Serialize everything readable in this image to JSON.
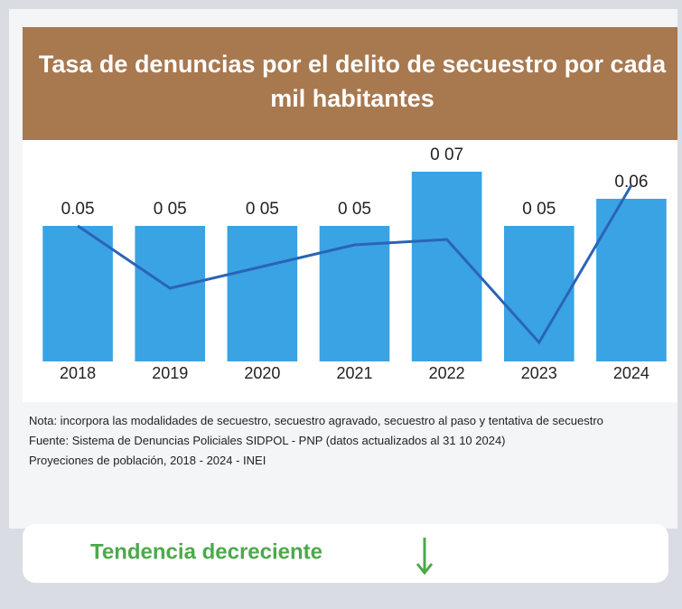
{
  "chart_data": {
    "type": "bar",
    "title": "Tasa de denuncias por el delito de secuestro por cada mil habitantes",
    "categories": [
      "2018",
      "2019",
      "2020",
      "2021",
      "2022",
      "2023",
      "2024"
    ],
    "series": [
      {
        "type": "bar",
        "color": "#3aa3e3",
        "values": [
          0.05,
          0.05,
          0.05,
          0.05,
          0.07,
          0.05,
          0.06
        ],
        "value_labels": [
          "0.05",
          "0 05",
          "0 05",
          "0 05",
          "0 07",
          "0 05",
          "0.06"
        ]
      },
      {
        "type": "line",
        "color": "#2a64b8",
        "values": [
          0.05,
          0.027,
          0.035,
          0.043,
          0.045,
          0.007,
          0.065
        ]
      }
    ]
  },
  "notes": [
    "Nota: incorpora las modalidades de secuestro, secuestro agravado, secuestro al paso y tentativa de secuestro",
    "Fuente: Sistema de Denuncias Policiales SIDPOL - PNP (datos actualizados al 31 10 2024)",
    "Proyeciones de población, 2018 - 2024 - INEI"
  ],
  "footer": "Tendencia decreciente"
}
